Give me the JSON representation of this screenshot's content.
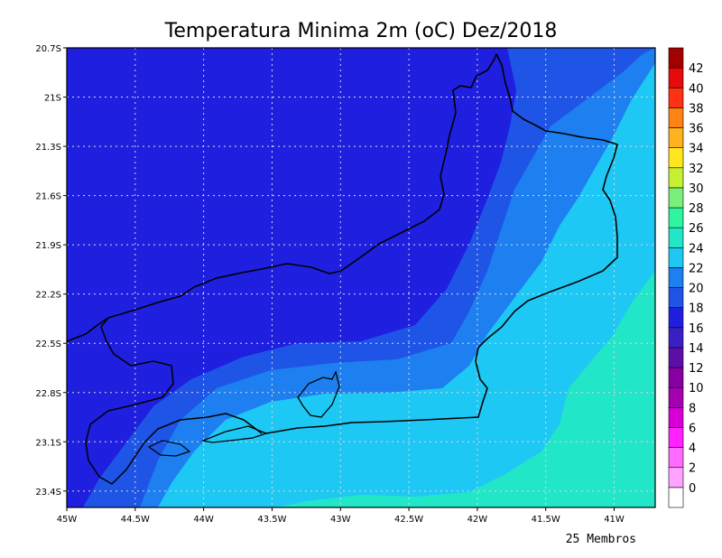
{
  "chart_data": {
    "type": "heatmap",
    "title": "Temperatura Minima 2m (oC) Dez/2018",
    "footer": "25 Membros",
    "x_ticks": [
      "45W",
      "44.5W",
      "44W",
      "43.5W",
      "43W",
      "42.5W",
      "42W",
      "41.5W",
      "41W"
    ],
    "y_ticks": [
      "20.7S",
      "21S",
      "21.3S",
      "21.6S",
      "21.9S",
      "22.2S",
      "22.5S",
      "22.8S",
      "23.1S",
      "23.4S"
    ],
    "xlim": [
      -45.0,
      -40.7
    ],
    "ylim": [
      -23.5,
      -20.7
    ],
    "grid": true,
    "colorbar": {
      "levels": [
        "0",
        "2",
        "4",
        "6",
        "8",
        "10",
        "12",
        "14",
        "16",
        "18",
        "20",
        "22",
        "24",
        "26",
        "28",
        "30",
        "32",
        "34",
        "36",
        "38",
        "40",
        "42"
      ],
      "colors": [
        "#ffffff",
        "#ffa3ff",
        "#ff6bff",
        "#ff21ff",
        "#d600d6",
        "#a300b2",
        "#8700a3",
        "#5c0fa8",
        "#3a20c4",
        "#1f1fe0",
        "#1e55e6",
        "#1e80f0",
        "#1ec8f5",
        "#22e6c8",
        "#2ef5a0",
        "#7af07a",
        "#c8f032",
        "#ffe61e",
        "#ffb11e",
        "#ff8214",
        "#ff3214",
        "#e60a0a",
        "#a30000"
      ]
    },
    "fields": [
      {
        "range": "<16",
        "color": "#1f1fe0"
      },
      {
        "range": "16-18",
        "color": "#1f1fe0"
      },
      {
        "range": "18-20",
        "color": "#1e55e6"
      },
      {
        "range": "20-22",
        "color": "#1e80f0"
      },
      {
        "range": "22-24",
        "color": "#1ec8f5"
      },
      {
        "range": "24-26",
        "color": "#22e6c8"
      }
    ]
  }
}
